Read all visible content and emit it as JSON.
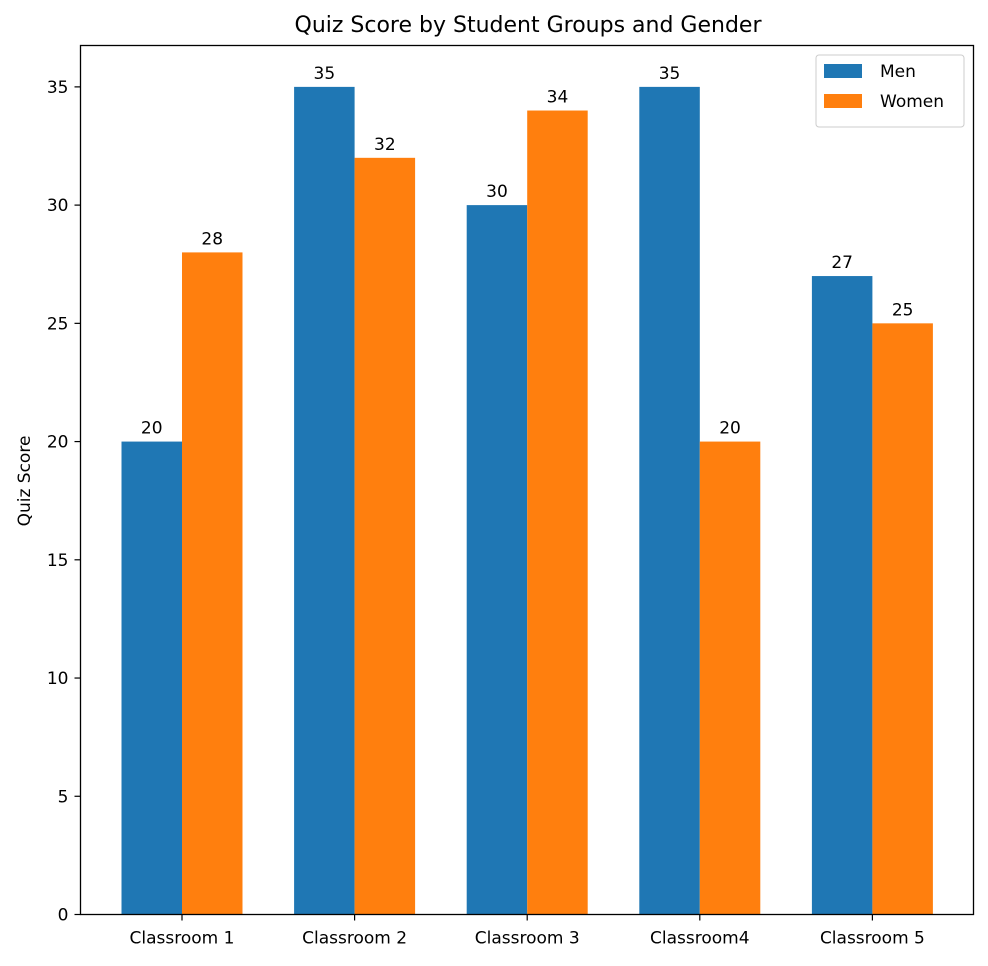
{
  "chart_data": {
    "type": "bar",
    "title": "Quiz Score by Student Groups and Gender",
    "xlabel": "",
    "ylabel": "Quiz Score",
    "categories": [
      "Classroom 1",
      "Classroom 2",
      "Classroom 3",
      "Classroom4",
      "Classroom 5"
    ],
    "series": [
      {
        "name": "Men",
        "color": "#1f77b4",
        "values": [
          20,
          35,
          30,
          35,
          27
        ]
      },
      {
        "name": "Women",
        "color": "#ff7f0e",
        "values": [
          28,
          32,
          34,
          20,
          25
        ]
      }
    ],
    "ylim": [
      0,
      36.75
    ],
    "yticks": [
      0,
      5,
      10,
      15,
      20,
      25,
      30,
      35
    ],
    "legend": {
      "position": "top-right"
    },
    "grid": false
  }
}
